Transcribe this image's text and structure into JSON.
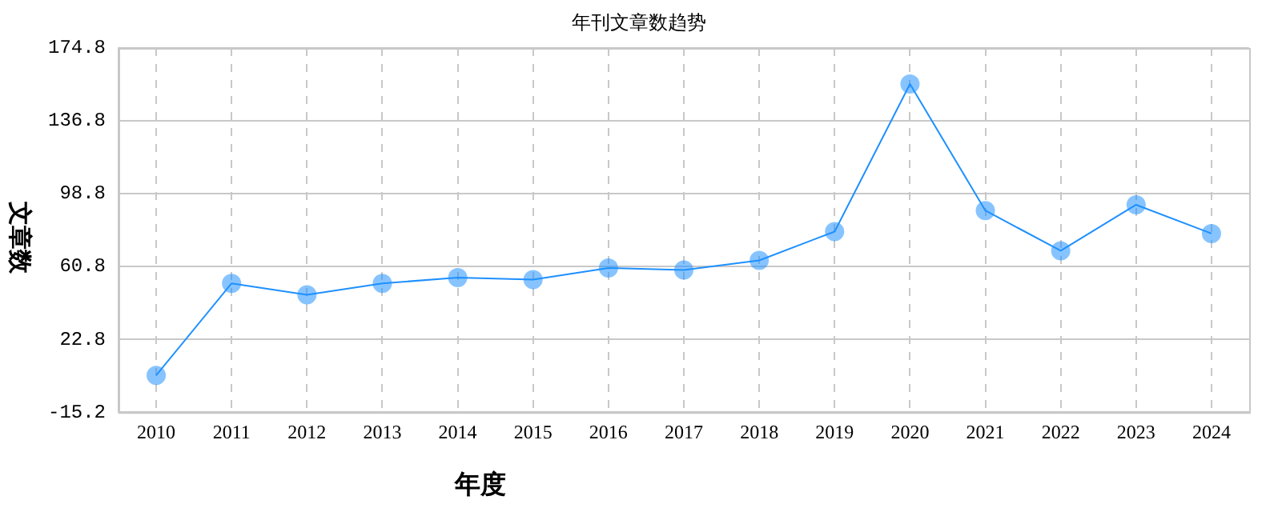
{
  "chart_data": {
    "type": "line",
    "title": "年刊文章数趋势",
    "xlabel": "年度",
    "ylabel": "文章数",
    "categories": [
      "2010",
      "2011",
      "2012",
      "2013",
      "2014",
      "2015",
      "2016",
      "2017",
      "2018",
      "2019",
      "2020",
      "2021",
      "2022",
      "2023",
      "2024"
    ],
    "series": [
      {
        "color": "#1e90ff",
        "values": [
          4,
          52,
          46,
          52,
          55,
          54,
          60,
          59,
          64,
          79,
          156,
          90,
          69,
          93,
          78
        ]
      }
    ],
    "ylim": [
      -15.2,
      174.8
    ],
    "yticks": [
      -15.2,
      22.8,
      60.8,
      98.8,
      136.8,
      174.8
    ],
    "grid": true,
    "legend": false,
    "marker": "circle",
    "line_style": "solid"
  }
}
